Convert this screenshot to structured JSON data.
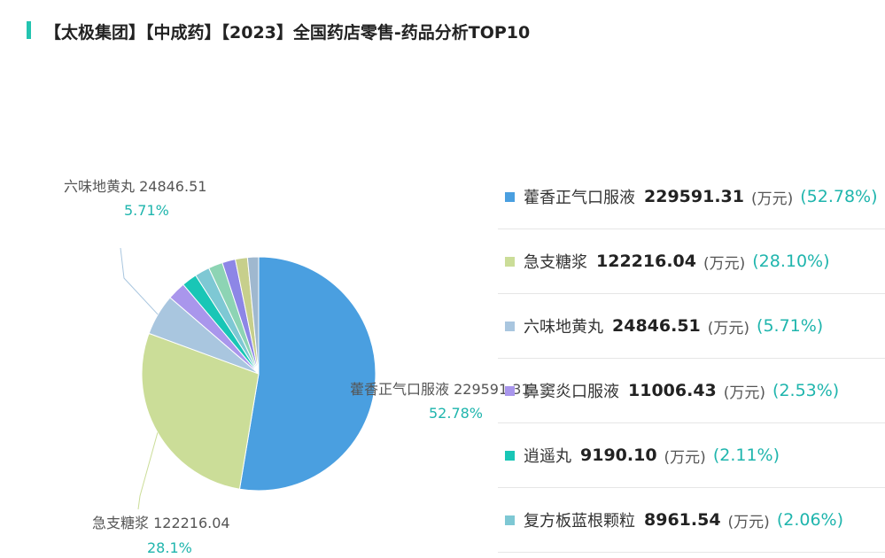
{
  "title": "【太极集团】【中成药】【2023】全国药店零售-药品分析TOP10",
  "colors": {
    "accent": "#23c4b0",
    "percent": "#1fb5ad"
  },
  "chart_data": {
    "type": "pie",
    "unit": "(万元)",
    "series": [
      {
        "name": "藿香正气口服液",
        "value": 229591.31,
        "pct": "52.78%",
        "color": "#4a9fe0"
      },
      {
        "name": "急支糖浆",
        "value": 122216.04,
        "pct": "28.10%",
        "color": "#cbdd98"
      },
      {
        "name": "六味地黄丸",
        "value": 24846.51,
        "pct": "5.71%",
        "color": "#a9c6df"
      },
      {
        "name": "鼻窦炎口服液",
        "value": 11006.43,
        "pct": "2.53%",
        "color": "#a996ec"
      },
      {
        "name": "逍遥丸",
        "value": 9190.1,
        "pct": "2.11%",
        "color": "#19c6b6"
      },
      {
        "name": "复方板蓝根颗粒",
        "value": 8961.54,
        "pct": "2.06%",
        "color": "#7ec8d4"
      },
      {
        "name": "",
        "value": 8600,
        "color": "#8dd4b4"
      },
      {
        "name": "",
        "value": 8000,
        "color": "#8d86e6"
      },
      {
        "name": "",
        "value": 7300,
        "color": "#c7cf8c"
      },
      {
        "name": "",
        "value": 6700,
        "color": "#9fb8cf"
      }
    ],
    "labels": [
      {
        "index": 0,
        "name": "藿香正气口服液",
        "value": "229591.31",
        "pct": "52.78%"
      },
      {
        "index": 1,
        "name": "急支糖浆",
        "value": "122216.04",
        "pct": "28.1%"
      },
      {
        "index": 2,
        "name": "六味地黄丸",
        "value": "24846.51",
        "pct": "5.71%"
      }
    ],
    "legend": [
      {
        "name": "藿香正气口服液",
        "value": "229591.31",
        "unit": "(万元)",
        "pct": "(52.78%)",
        "color": "#4a9fe0"
      },
      {
        "name": "急支糖浆",
        "value": "122216.04",
        "unit": "(万元)",
        "pct": "(28.10%)",
        "color": "#cbdd98"
      },
      {
        "name": "六味地黄丸",
        "value": "24846.51",
        "unit": "(万元)",
        "pct": "(5.71%)",
        "color": "#a9c6df"
      },
      {
        "name": "鼻窦炎口服液",
        "value": "11006.43",
        "unit": "(万元)",
        "pct": "(2.53%)",
        "color": "#a996ec"
      },
      {
        "name": "逍遥丸",
        "value": "9190.10",
        "unit": "(万元)",
        "pct": "(2.11%)",
        "color": "#19c6b6"
      },
      {
        "name": "复方板蓝根颗粒",
        "value": "8961.54",
        "unit": "(万元)",
        "pct": "(2.06%)",
        "color": "#7ec8d4"
      }
    ]
  }
}
